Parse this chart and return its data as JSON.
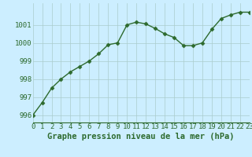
{
  "x": [
    0,
    1,
    2,
    3,
    4,
    5,
    6,
    7,
    8,
    9,
    10,
    11,
    12,
    13,
    14,
    15,
    16,
    17,
    18,
    19,
    20,
    21,
    22,
    23
  ],
  "y": [
    996.0,
    996.7,
    997.5,
    998.0,
    998.4,
    998.7,
    999.0,
    999.4,
    999.9,
    1000.0,
    1001.0,
    1001.15,
    1001.05,
    1000.8,
    1000.5,
    1000.3,
    999.85,
    999.85,
    1000.0,
    1000.75,
    1001.35,
    1001.55,
    1001.7,
    1001.7
  ],
  "line_color": "#2d6a2d",
  "marker": "D",
  "marker_size": 2.5,
  "bg_color": "#cceeff",
  "grid_color": "#aacccc",
  "xlabel": "Graphe pression niveau de la mer (hPa)",
  "ylim": [
    995.6,
    1002.2
  ],
  "xlim": [
    0,
    23
  ],
  "yticks": [
    996,
    997,
    998,
    999,
    1000,
    1001
  ],
  "xtick_labels": [
    "0",
    "1",
    "2",
    "3",
    "4",
    "5",
    "6",
    "7",
    "8",
    "9",
    "10",
    "11",
    "12",
    "13",
    "14",
    "15",
    "16",
    "17",
    "18",
    "19",
    "20",
    "21",
    "22",
    "23"
  ],
  "title_fontsize": 7.5,
  "tick_fontsize": 6.5,
  "line_width": 1.0
}
